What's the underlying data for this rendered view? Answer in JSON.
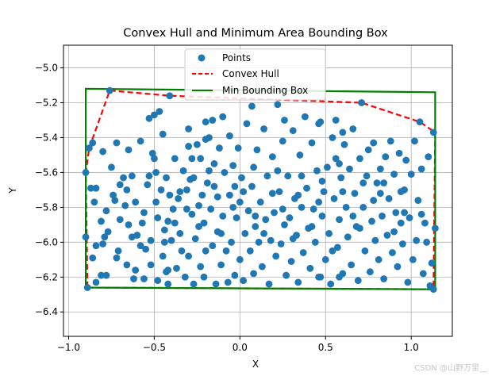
{
  "chart_data": {
    "type": "scatter",
    "title": "Convex Hull and Minimum Area Bounding Box",
    "xlabel": "X",
    "ylabel": "Y",
    "xlim": [
      -1.03,
      1.24
    ],
    "ylim": [
      -6.54,
      -4.87
    ],
    "xticks": [
      -1.0,
      -0.5,
      0.0,
      0.5,
      1.0
    ],
    "xtick_labels": [
      "−1.0",
      "−0.5",
      "0.0",
      "0.5",
      "1.0"
    ],
    "yticks": [
      -6.4,
      -6.2,
      -6.0,
      -5.8,
      -5.6,
      -5.4,
      -5.2,
      -5.0
    ],
    "ytick_labels": [
      "−6.4",
      "−6.2",
      "−6.0",
      "−5.8",
      "−5.6",
      "−5.4",
      "−5.2",
      "−5.0"
    ],
    "grid": true,
    "legend": {
      "placement": "upper-center",
      "entries": [
        {
          "label": "Points",
          "style": "marker",
          "color": "#1f77b4"
        },
        {
          "label": "Convex Hull",
          "style": "dashed",
          "color": "#ff0000"
        },
        {
          "label": "Min Bounding Box",
          "style": "solid",
          "color": "#008000"
        }
      ]
    },
    "series": [
      {
        "name": "Points",
        "color": "#1f77b4",
        "points": [
          [
            -0.89,
            -6.26
          ],
          [
            -0.9,
            -5.97
          ],
          [
            -0.9,
            -5.6
          ],
          [
            -0.88,
            -5.46
          ],
          [
            -0.86,
            -5.43
          ],
          [
            -0.87,
            -5.69
          ],
          [
            -0.85,
            -5.77
          ],
          [
            -0.84,
            -5.69
          ],
          [
            -0.86,
            -6.09
          ],
          [
            -0.84,
            -6.23
          ],
          [
            -0.8,
            -6.01
          ],
          [
            -0.8,
            -5.48
          ],
          [
            -0.81,
            -6.19
          ],
          [
            -0.81,
            -5.88
          ],
          [
            -0.79,
            -5.97
          ],
          [
            -0.78,
            -6.19
          ],
          [
            -0.77,
            -5.94
          ],
          [
            -0.76,
            -5.13
          ],
          [
            -0.75,
            -5.57
          ],
          [
            -0.74,
            -5.73
          ],
          [
            -0.73,
            -5.76
          ],
          [
            -0.72,
            -6.09
          ],
          [
            -0.72,
            -5.43
          ],
          [
            -0.71,
            -6.05
          ],
          [
            -0.7,
            -5.87
          ],
          [
            -0.68,
            -5.63
          ],
          [
            -0.67,
            -5.79
          ],
          [
            -0.66,
            -6.13
          ],
          [
            -0.65,
            -5.9
          ],
          [
            -0.65,
            -5.47
          ],
          [
            -0.63,
            -5.62
          ],
          [
            -0.62,
            -6.21
          ],
          [
            -0.61,
            -6.16
          ],
          [
            -0.61,
            -5.77
          ],
          [
            -0.6,
            -5.96
          ],
          [
            -0.58,
            -5.42
          ],
          [
            -0.58,
            -6.02
          ],
          [
            -0.56,
            -6.21
          ],
          [
            -0.56,
            -5.83
          ],
          [
            -0.55,
            -6.04
          ],
          [
            -0.54,
            -5.67
          ],
          [
            -0.53,
            -5.29
          ],
          [
            -0.52,
            -5.99
          ],
          [
            -0.52,
            -6.13
          ],
          [
            -0.51,
            -5.49
          ],
          [
            -0.5,
            -5.27
          ],
          [
            -0.5,
            -5.52
          ],
          [
            -0.49,
            -5.6
          ],
          [
            -0.48,
            -5.86
          ],
          [
            -0.48,
            -6.22
          ],
          [
            -0.47,
            -5.25
          ],
          [
            -0.46,
            -5.7
          ],
          [
            -0.45,
            -5.38
          ],
          [
            -0.45,
            -6.08
          ],
          [
            -0.44,
            -5.93
          ],
          [
            -0.43,
            -5.63
          ],
          [
            -0.43,
            -6.17
          ],
          [
            -0.42,
            -6.24
          ],
          [
            -0.42,
            -5.88
          ],
          [
            -0.41,
            -5.16
          ],
          [
            -0.4,
            -5.99
          ],
          [
            -0.39,
            -5.81
          ],
          [
            -0.38,
            -5.52
          ],
          [
            -0.37,
            -6.15
          ],
          [
            -0.36,
            -5.75
          ],
          [
            -0.35,
            -5.71
          ],
          [
            -0.35,
            -5.95
          ],
          [
            -0.34,
            -6.05
          ],
          [
            -0.33,
            -5.59
          ],
          [
            -0.32,
            -6.2
          ],
          [
            -0.31,
            -5.81
          ],
          [
            -0.3,
            -5.45
          ],
          [
            -0.3,
            -6.08
          ],
          [
            -0.29,
            -5.64
          ],
          [
            -0.28,
            -5.84
          ],
          [
            -0.27,
            -6.24
          ],
          [
            -0.27,
            -5.63
          ],
          [
            -0.26,
            -5.98
          ],
          [
            -0.25,
            -5.44
          ],
          [
            -0.24,
            -5.79
          ],
          [
            -0.23,
            -6.14
          ],
          [
            -0.23,
            -5.52
          ],
          [
            -0.22,
            -5.73
          ],
          [
            -0.21,
            -6.2
          ],
          [
            -0.21,
            -5.89
          ],
          [
            -0.2,
            -5.31
          ],
          [
            -0.2,
            -6.05
          ],
          [
            -0.19,
            -5.66
          ],
          [
            -0.18,
            -5.4
          ],
          [
            -0.17,
            -5.81
          ],
          [
            -0.16,
            -6.02
          ],
          [
            -0.16,
            -5.3
          ],
          [
            -0.15,
            -5.55
          ],
          [
            -0.14,
            -6.24
          ],
          [
            -0.13,
            -5.74
          ],
          [
            -0.13,
            -5.94
          ],
          [
            -0.12,
            -5.46
          ],
          [
            -0.11,
            -6.13
          ],
          [
            -0.1,
            -5.28
          ],
          [
            -0.1,
            -5.85
          ],
          [
            -0.09,
            -5.6
          ],
          [
            -0.08,
            -6.05
          ],
          [
            -0.07,
            -6.23
          ],
          [
            -0.06,
            -5.39
          ],
          [
            -0.06,
            -5.73
          ],
          [
            -0.05,
            -6.0
          ],
          [
            -0.04,
            -5.56
          ],
          [
            -0.03,
            -6.19
          ],
          [
            -0.02,
            -5.86
          ],
          [
            -0.01,
            -5.46
          ],
          [
            0.0,
            -5.77
          ],
          [
            0.0,
            -6.1
          ],
          [
            0.01,
            -5.63
          ],
          [
            0.02,
            -6.22
          ],
          [
            0.03,
            -5.95
          ],
          [
            0.04,
            -5.32
          ],
          [
            0.05,
            -5.82
          ],
          [
            0.06,
            -6.05
          ],
          [
            0.07,
            -5.22
          ],
          [
            0.07,
            -5.68
          ],
          [
            0.08,
            -6.18
          ],
          [
            0.09,
            -5.91
          ],
          [
            0.1,
            -5.47
          ],
          [
            0.11,
            -6.0
          ],
          [
            0.12,
            -5.77
          ],
          [
            0.13,
            -6.14
          ],
          [
            0.14,
            -5.35
          ],
          [
            0.15,
            -5.87
          ],
          [
            0.16,
            -5.62
          ],
          [
            0.17,
            -6.24
          ],
          [
            0.18,
            -5.99
          ],
          [
            0.19,
            -5.51
          ],
          [
            0.2,
            -5.83
          ],
          [
            0.21,
            -6.08
          ],
          [
            0.22,
            -5.21
          ],
          [
            0.23,
            -5.71
          ],
          [
            0.24,
            -6.01
          ],
          [
            0.25,
            -5.42
          ],
          [
            0.26,
            -5.9
          ],
          [
            0.27,
            -6.19
          ],
          [
            0.28,
            -5.62
          ],
          [
            0.29,
            -5.86
          ],
          [
            0.3,
            -6.11
          ],
          [
            0.31,
            -5.36
          ],
          [
            0.32,
            -5.75
          ],
          [
            0.33,
            -5.96
          ],
          [
            0.34,
            -6.23
          ],
          [
            0.35,
            -5.5
          ],
          [
            0.36,
            -5.8
          ],
          [
            0.37,
            -6.06
          ],
          [
            0.38,
            -5.28
          ],
          [
            0.39,
            -5.69
          ],
          [
            0.4,
            -5.92
          ],
          [
            0.41,
            -6.15
          ],
          [
            0.42,
            -5.43
          ],
          [
            0.43,
            -5.81
          ],
          [
            0.44,
            -6.0
          ],
          [
            0.45,
            -5.59
          ],
          [
            0.46,
            -6.2
          ],
          [
            0.47,
            -5.31
          ],
          [
            0.48,
            -5.85
          ],
          [
            0.49,
            -5.71
          ],
          [
            0.5,
            -6.1
          ],
          [
            0.51,
            -5.57
          ],
          [
            0.52,
            -5.95
          ],
          [
            0.53,
            -6.24
          ],
          [
            0.54,
            -5.4
          ],
          [
            0.55,
            -5.75
          ],
          [
            0.56,
            -5.52
          ],
          [
            0.57,
            -6.03
          ],
          [
            0.58,
            -5.87
          ],
          [
            0.59,
            -5.63
          ],
          [
            0.6,
            -6.18
          ],
          [
            0.61,
            -5.44
          ],
          [
            0.62,
            -5.8
          ],
          [
            0.63,
            -5.97
          ],
          [
            0.64,
            -5.58
          ],
          [
            0.65,
            -6.13
          ],
          [
            0.66,
            -5.35
          ],
          [
            0.67,
            -5.72
          ],
          [
            0.68,
            -5.91
          ],
          [
            0.69,
            -6.22
          ],
          [
            0.7,
            -5.52
          ],
          [
            0.71,
            -5.2
          ],
          [
            0.72,
            -5.8
          ],
          [
            0.73,
            -6.05
          ],
          [
            0.74,
            -5.62
          ],
          [
            0.75,
            -5.47
          ],
          [
            0.76,
            -6.17
          ],
          [
            0.77,
            -5.88
          ],
          [
            0.78,
            -5.43
          ],
          [
            0.79,
            -5.99
          ],
          [
            0.8,
            -5.66
          ],
          [
            0.81,
            -6.1
          ],
          [
            0.82,
            -5.58
          ],
          [
            0.83,
            -5.85
          ],
          [
            0.84,
            -6.21
          ],
          [
            0.85,
            -5.51
          ],
          [
            0.86,
            -5.96
          ],
          [
            0.87,
            -5.75
          ],
          [
            0.88,
            -5.42
          ],
          [
            0.89,
            -6.06
          ],
          [
            0.9,
            -5.61
          ],
          [
            0.91,
            -5.83
          ],
          [
            0.92,
            -6.14
          ],
          [
            0.93,
            -5.49
          ],
          [
            0.94,
            -5.89
          ],
          [
            0.95,
            -6.01
          ],
          [
            0.96,
            -5.7
          ],
          [
            0.97,
            -5.53
          ],
          [
            0.98,
            -6.23
          ],
          [
            0.99,
            -5.86
          ],
          [
            1.0,
            -5.61
          ],
          [
            1.01,
            -6.1
          ],
          [
            1.02,
            -5.42
          ],
          [
            1.03,
            -5.99
          ],
          [
            1.04,
            -5.76
          ],
          [
            1.05,
            -5.31
          ],
          [
            1.06,
            -5.58
          ],
          [
            1.07,
            -6.18
          ],
          [
            1.08,
            -5.89
          ],
          [
            1.09,
            -6.0
          ],
          [
            1.1,
            -5.51
          ],
          [
            1.11,
            -6.25
          ],
          [
            1.12,
            -6.12
          ],
          [
            1.13,
            -5.37
          ],
          [
            1.13,
            -6.27
          ],
          [
            1.14,
            -5.92
          ],
          [
            -0.84,
            -6.02
          ],
          [
            -0.78,
            -5.82
          ],
          [
            -0.7,
            -5.67
          ],
          [
            -0.63,
            -5.97
          ],
          [
            -0.57,
            -5.89
          ],
          [
            -0.49,
            -5.77
          ],
          [
            -0.44,
            -6.0
          ],
          [
            -0.38,
            -5.89
          ],
          [
            -0.31,
            -5.7
          ],
          [
            -0.24,
            -5.91
          ],
          [
            -0.18,
            -5.59
          ],
          [
            -0.11,
            -5.95
          ],
          [
            -0.04,
            -5.8
          ],
          [
            0.02,
            -5.71
          ],
          [
            0.08,
            -5.57
          ],
          [
            0.14,
            -5.95
          ],
          [
            0.19,
            -5.72
          ],
          [
            0.25,
            -5.81
          ],
          [
            0.31,
            -5.98
          ],
          [
            0.36,
            -5.62
          ],
          [
            0.42,
            -5.91
          ],
          [
            0.48,
            -5.65
          ],
          [
            0.54,
            -6.05
          ],
          [
            0.6,
            -5.71
          ],
          [
            0.66,
            -5.85
          ],
          [
            0.72,
            -5.66
          ],
          [
            0.78,
            -5.76
          ],
          [
            0.84,
            -5.66
          ],
          [
            0.9,
            -5.94
          ],
          [
            0.96,
            -5.83
          ],
          [
            -0.66,
            -5.7
          ],
          [
            -0.53,
            -5.62
          ],
          [
            -0.41,
            -5.73
          ],
          [
            -0.28,
            -5.52
          ],
          [
            -0.15,
            -5.68
          ],
          [
            -0.03,
            -5.68
          ],
          [
            0.09,
            -5.85
          ],
          [
            0.22,
            -5.59
          ],
          [
            0.34,
            -5.73
          ],
          [
            0.46,
            -5.77
          ],
          [
            0.58,
            -5.55
          ],
          [
            0.7,
            -5.92
          ],
          [
            0.82,
            -5.72
          ],
          [
            0.94,
            -5.71
          ],
          [
            1.06,
            -5.84
          ],
          [
            -0.3,
            -5.35
          ],
          [
            -0.2,
            -5.41
          ],
          [
            0.46,
            -5.32
          ],
          [
            0.56,
            -5.3
          ],
          [
            0.6,
            -5.37
          ],
          [
            0.26,
            -5.3
          ],
          [
            -0.42,
            -6.16
          ],
          [
            0.58,
            -6.2
          ],
          [
            0.47,
            -6.2
          ]
        ]
      }
    ],
    "lines": [
      {
        "name": "Convex Hull",
        "color": "#ff0000",
        "style": "dashed",
        "points": [
          [
            -0.89,
            -6.26
          ],
          [
            1.13,
            -6.27
          ],
          [
            1.14,
            -5.37
          ],
          [
            1.05,
            -5.31
          ],
          [
            0.71,
            -5.2
          ],
          [
            -0.41,
            -5.16
          ],
          [
            -0.76,
            -5.13
          ],
          [
            -0.88,
            -5.46
          ],
          [
            -0.9,
            -5.6
          ],
          [
            -0.89,
            -6.26
          ]
        ]
      },
      {
        "name": "Min Bounding Box",
        "color": "#008000",
        "style": "solid",
        "points": [
          [
            -0.9,
            -6.26
          ],
          [
            1.14,
            -6.27
          ],
          [
            1.14,
            -5.14
          ],
          [
            -0.9,
            -5.12
          ],
          [
            -0.9,
            -6.26
          ]
        ]
      }
    ]
  },
  "watermark": "CSDN @山野万里__"
}
